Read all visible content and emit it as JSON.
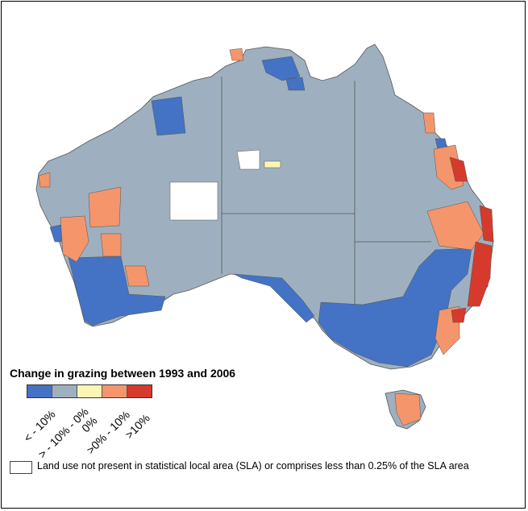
{
  "legend": {
    "title": "Change in grazing between 1993 and 2006",
    "classes": [
      {
        "label": "< - 10%",
        "color": "#4472c4"
      },
      {
        "label": "> - 10% - 0%",
        "color": "#9eb0bf"
      },
      {
        "label": "0%",
        "color": "#fdf5b4"
      },
      {
        "label": ">0% - 10%",
        "color": "#f4956b"
      },
      {
        "label": ">10%",
        "color": "#d63a2c"
      }
    ],
    "note": "Land use not present in statistical local area (SLA) or comprises less than 0.25% of the SLA area",
    "note_color": "#ffffff"
  },
  "map": {
    "region": "Australia",
    "base_color": "#9eb0bf",
    "border_color": "#555555"
  }
}
